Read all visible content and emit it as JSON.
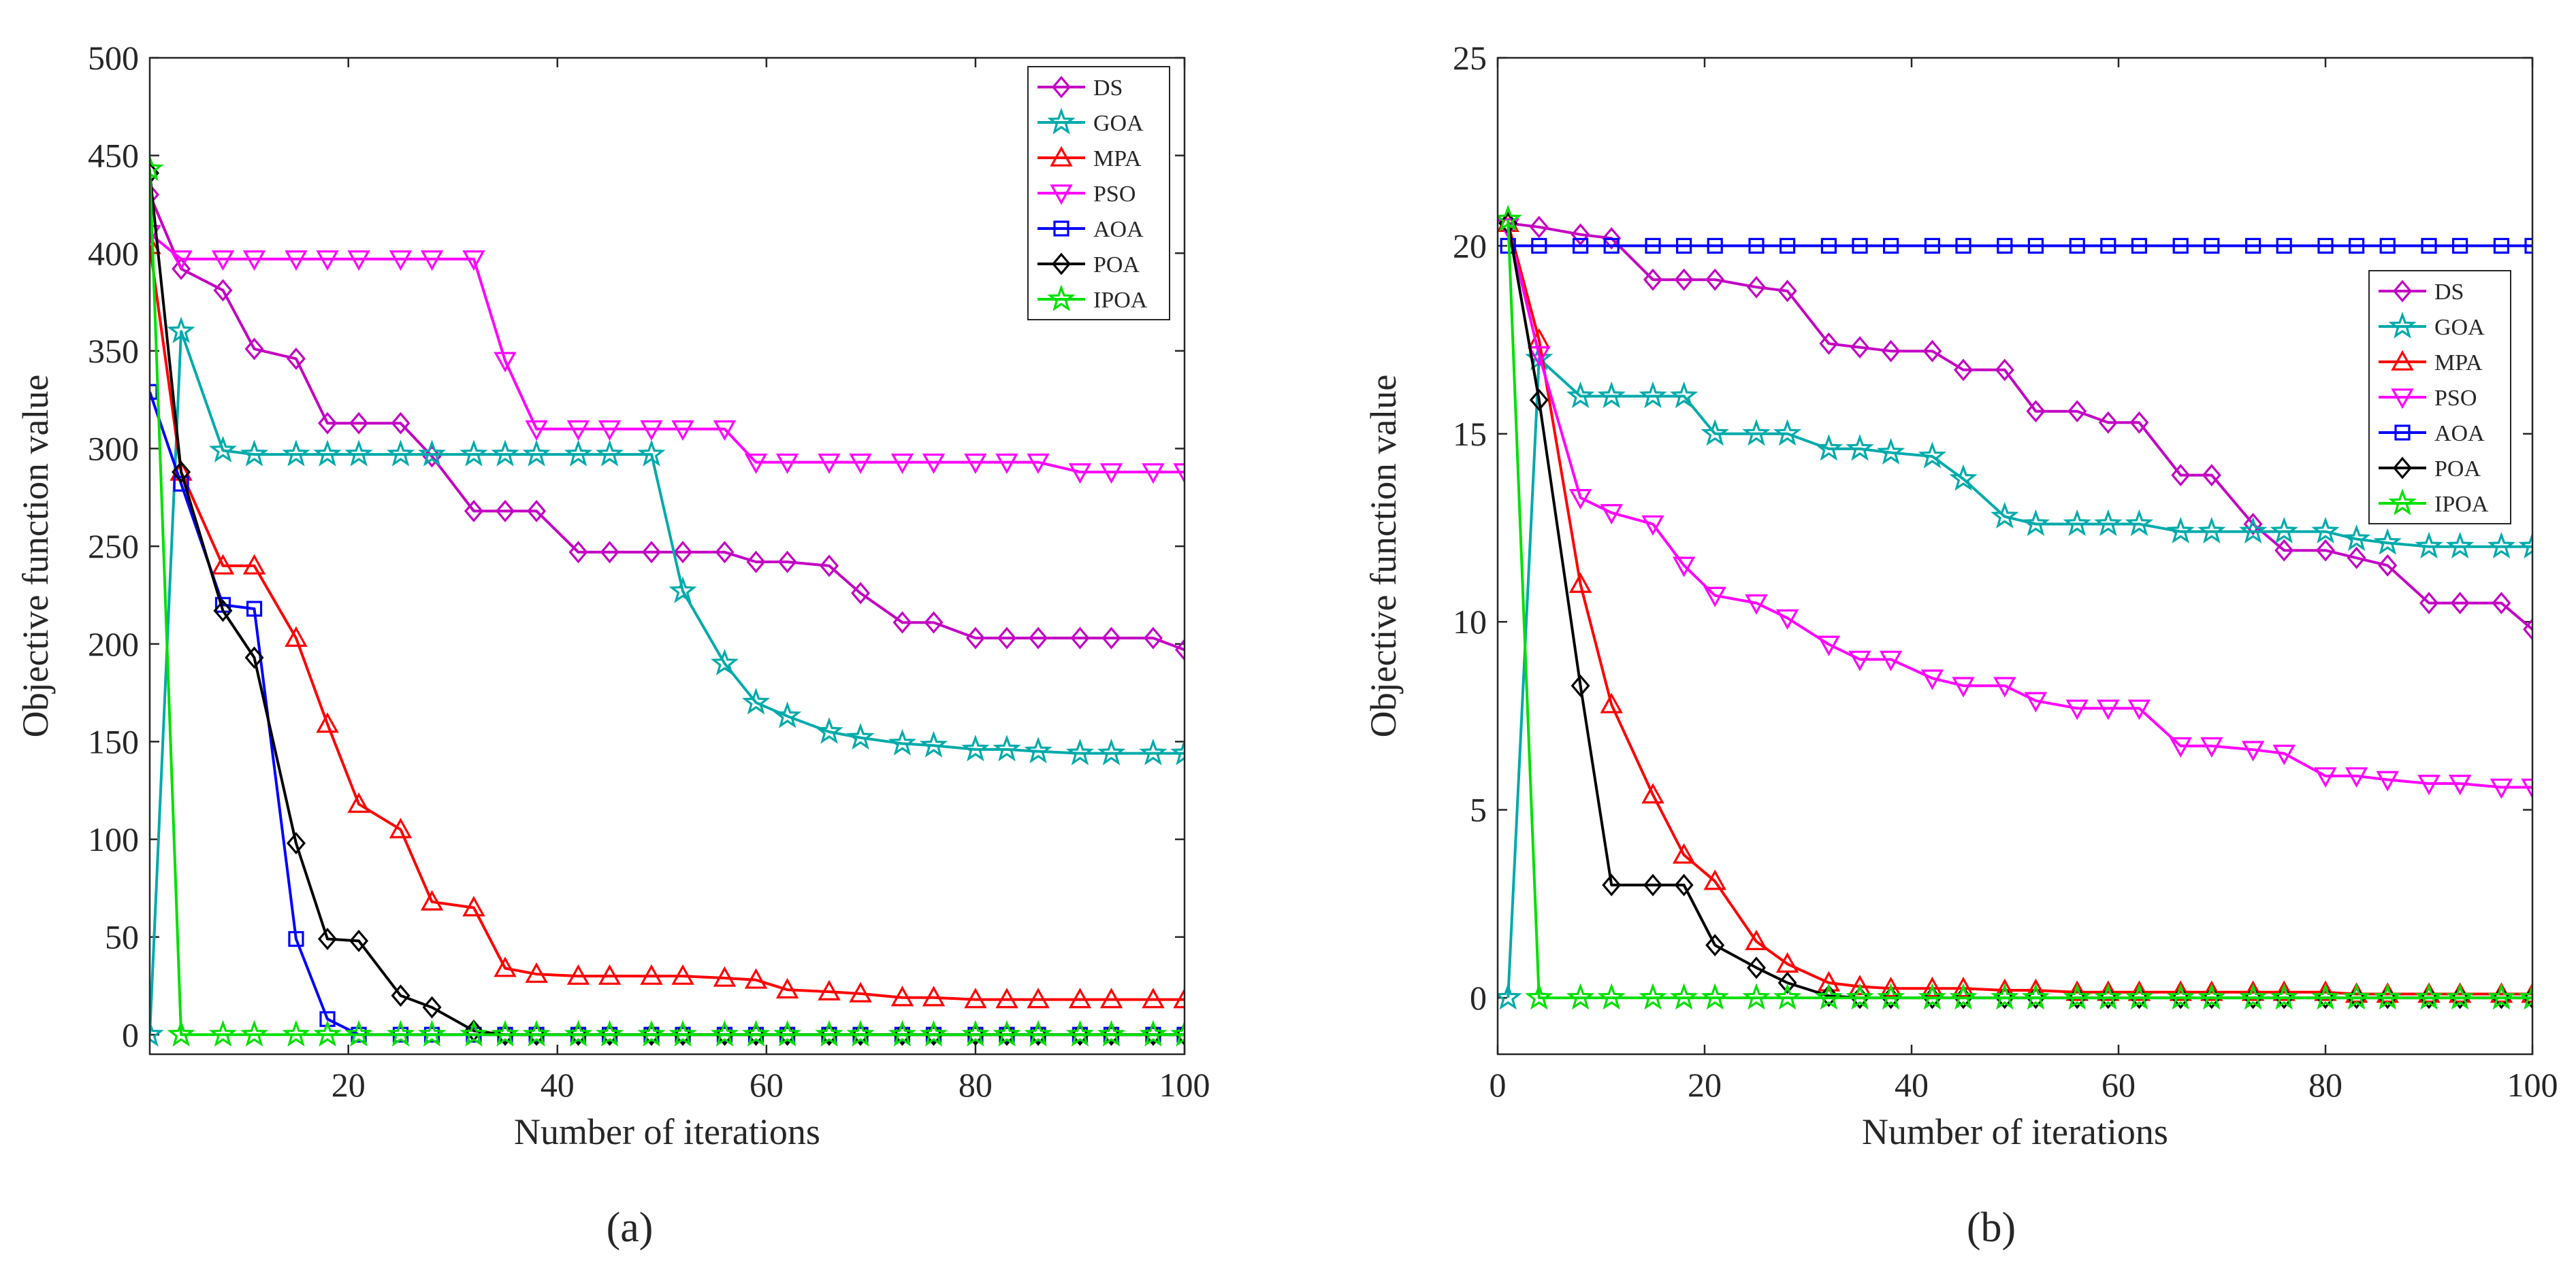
{
  "chart_data": [
    {
      "type": "line",
      "panel_label": "(a)",
      "title": "",
      "xlabel": "Number of iterations",
      "ylabel": "Objective function value",
      "xlim": [
        1,
        100
      ],
      "ylim": [
        -10,
        500
      ],
      "xticks": [
        20,
        40,
        60,
        80,
        100
      ],
      "yticks": [
        0,
        50,
        100,
        150,
        200,
        250,
        300,
        350,
        400,
        450,
        500
      ],
      "grid": false,
      "legend_position": "top-right",
      "series": [
        {
          "name": "DS",
          "color": "#c300c3",
          "marker": "diamond",
          "x": [
            1,
            4,
            8,
            11,
            15,
            18,
            21,
            25,
            28,
            32,
            35,
            38,
            42,
            45,
            49,
            52,
            56,
            59,
            62,
            66,
            69,
            73,
            76,
            80,
            83,
            86,
            90,
            93,
            97,
            100
          ],
          "y": [
            430,
            392,
            381,
            351,
            346,
            313,
            313,
            313,
            296,
            268,
            268,
            268,
            247,
            247,
            247,
            247,
            247,
            242,
            242,
            240,
            226,
            211,
            211,
            203,
            203,
            203,
            203,
            203,
            203,
            197
          ]
        },
        {
          "name": "GOA",
          "color": "#00aaaa",
          "marker": "star",
          "x": [
            1,
            4,
            8,
            11,
            15,
            18,
            21,
            25,
            28,
            32,
            35,
            38,
            42,
            45,
            49,
            52,
            56,
            59,
            62,
            66,
            69,
            73,
            76,
            80,
            83,
            86,
            90,
            93,
            97,
            100
          ],
          "y": [
            0,
            360,
            299,
            297,
            297,
            297,
            297,
            297,
            297,
            297,
            297,
            297,
            297,
            297,
            297,
            227,
            190,
            170,
            163,
            155,
            152,
            149,
            148,
            146,
            146,
            145,
            144,
            144,
            144,
            144
          ]
        },
        {
          "name": "MPA",
          "color": "#ff0000",
          "marker": "triangle-up",
          "x": [
            1,
            4,
            8,
            11,
            15,
            18,
            21,
            25,
            28,
            32,
            35,
            38,
            42,
            45,
            49,
            52,
            56,
            59,
            62,
            66,
            69,
            73,
            76,
            80,
            83,
            86,
            90,
            93,
            97,
            100
          ],
          "y": [
            404,
            288,
            240,
            240,
            203,
            159,
            118,
            105,
            68,
            65,
            34,
            31,
            30,
            30,
            30,
            30,
            29,
            28,
            23,
            22,
            21,
            19,
            19,
            18,
            18,
            18,
            18,
            18,
            18,
            18
          ]
        },
        {
          "name": "PSO",
          "color": "#ff00ff",
          "marker": "triangle-down",
          "x": [
            1,
            4,
            8,
            11,
            15,
            18,
            21,
            25,
            28,
            32,
            35,
            38,
            42,
            45,
            49,
            52,
            56,
            59,
            62,
            66,
            69,
            73,
            76,
            80,
            83,
            86,
            90,
            93,
            97,
            100
          ],
          "y": [
            410,
            397,
            397,
            397,
            397,
            397,
            397,
            397,
            397,
            397,
            345,
            310,
            310,
            310,
            310,
            310,
            310,
            293,
            293,
            293,
            293,
            293,
            293,
            293,
            293,
            293,
            288,
            288,
            288,
            288
          ]
        },
        {
          "name": "AOA",
          "color": "#0000ff",
          "marker": "square",
          "x": [
            1,
            4,
            8,
            11,
            15,
            18,
            21,
            25,
            28,
            32,
            35,
            38,
            42,
            45,
            49,
            52,
            56,
            59,
            62,
            66,
            69,
            73,
            76,
            80,
            83,
            86,
            90,
            93,
            97,
            100
          ],
          "y": [
            329,
            282,
            220,
            218,
            49,
            8,
            0,
            0,
            0,
            0,
            0,
            0,
            0,
            0,
            0,
            0,
            0,
            0,
            0,
            0,
            0,
            0,
            0,
            0,
            0,
            0,
            0,
            0,
            0,
            0
          ]
        },
        {
          "name": "POA",
          "color": "#000000",
          "marker": "diamond",
          "x": [
            1,
            4,
            8,
            11,
            15,
            18,
            21,
            25,
            28,
            32,
            35,
            38,
            42,
            45,
            49,
            52,
            56,
            59,
            62,
            66,
            69,
            73,
            76,
            80,
            83,
            86,
            90,
            93,
            97,
            100
          ],
          "y": [
            441,
            288,
            217,
            193,
            98,
            49,
            48,
            20,
            14,
            2,
            0,
            0,
            0,
            0,
            0,
            0,
            0,
            0,
            0,
            0,
            0,
            0,
            0,
            0,
            0,
            0,
            0,
            0,
            0,
            0
          ]
        },
        {
          "name": "IPOA",
          "color": "#00e000",
          "marker": "star",
          "x": [
            1,
            4,
            8,
            11,
            15,
            18,
            21,
            25,
            28,
            32,
            35,
            38,
            42,
            45,
            49,
            52,
            56,
            59,
            62,
            66,
            69,
            73,
            76,
            80,
            83,
            86,
            90,
            93,
            97,
            100
          ],
          "y": [
            443,
            0,
            0,
            0,
            0,
            0,
            0,
            0,
            0,
            0,
            0,
            0,
            0,
            0,
            0,
            0,
            0,
            0,
            0,
            0,
            0,
            0,
            0,
            0,
            0,
            0,
            0,
            0,
            0,
            0
          ]
        }
      ]
    },
    {
      "type": "line",
      "panel_label": "(b)",
      "title": "",
      "xlabel": "Number of iterations",
      "ylabel": "Objective function value",
      "xlim": [
        0,
        100
      ],
      "ylim": [
        -1.5,
        25
      ],
      "xticks": [
        0,
        20,
        40,
        60,
        80,
        100
      ],
      "yticks": [
        0,
        5,
        10,
        15,
        20,
        25
      ],
      "grid": false,
      "legend_position": "upper-right",
      "series": [
        {
          "name": "DS",
          "color": "#c300c3",
          "marker": "diamond",
          "x": [
            1,
            4,
            8,
            11,
            15,
            18,
            21,
            25,
            28,
            32,
            35,
            38,
            42,
            45,
            49,
            52,
            56,
            59,
            62,
            66,
            69,
            73,
            76,
            80,
            83,
            86,
            90,
            93,
            97,
            100
          ],
          "y": [
            20.6,
            20.5,
            20.3,
            20.2,
            19.1,
            19.1,
            19.1,
            18.9,
            18.8,
            17.4,
            17.3,
            17.2,
            17.2,
            16.7,
            16.7,
            15.6,
            15.6,
            15.3,
            15.3,
            13.9,
            13.9,
            12.6,
            11.9,
            11.9,
            11.7,
            11.5,
            10.5,
            10.5,
            10.5,
            9.8
          ]
        },
        {
          "name": "GOA",
          "color": "#00aaaa",
          "marker": "star",
          "x": [
            1,
            4,
            8,
            11,
            15,
            18,
            21,
            25,
            28,
            32,
            35,
            38,
            42,
            45,
            49,
            52,
            56,
            59,
            62,
            66,
            69,
            73,
            76,
            80,
            83,
            86,
            90,
            93,
            97,
            100
          ],
          "y": [
            0,
            17,
            16,
            16,
            16,
            16,
            15,
            15,
            15,
            14.6,
            14.6,
            14.5,
            14.4,
            13.8,
            12.8,
            12.6,
            12.6,
            12.6,
            12.6,
            12.4,
            12.4,
            12.4,
            12.4,
            12.4,
            12.2,
            12.1,
            12,
            12,
            12,
            12
          ]
        },
        {
          "name": "MPA",
          "color": "#ff0000",
          "marker": "triangle-up",
          "x": [
            1,
            4,
            8,
            11,
            15,
            18,
            21,
            25,
            28,
            32,
            35,
            38,
            42,
            45,
            49,
            52,
            56,
            59,
            62,
            66,
            69,
            73,
            76,
            80,
            83,
            86,
            90,
            93,
            97,
            100
          ],
          "y": [
            20.6,
            17.5,
            11,
            7.8,
            5.4,
            3.8,
            3.1,
            1.5,
            0.9,
            0.4,
            0.3,
            0.25,
            0.25,
            0.25,
            0.2,
            0.2,
            0.15,
            0.15,
            0.15,
            0.15,
            0.15,
            0.15,
            0.15,
            0.15,
            0.1,
            0.1,
            0.1,
            0.1,
            0.1,
            0.1
          ]
        },
        {
          "name": "PSO",
          "color": "#ff00ff",
          "marker": "triangle-down",
          "x": [
            1,
            4,
            8,
            11,
            15,
            18,
            21,
            25,
            28,
            32,
            35,
            38,
            42,
            45,
            49,
            52,
            56,
            59,
            62,
            66,
            69,
            73,
            76,
            80,
            83,
            86,
            90,
            93,
            97,
            100
          ],
          "y": [
            20.5,
            17.1,
            13.3,
            12.9,
            12.6,
            11.5,
            10.7,
            10.5,
            10.1,
            9.4,
            9,
            9,
            8.5,
            8.3,
            8.3,
            7.9,
            7.7,
            7.7,
            7.7,
            6.7,
            6.7,
            6.6,
            6.5,
            5.9,
            5.9,
            5.8,
            5.7,
            5.7,
            5.6,
            5.6
          ]
        },
        {
          "name": "AOA",
          "color": "#0000ff",
          "marker": "square",
          "x": [
            1,
            4,
            8,
            11,
            15,
            18,
            21,
            25,
            28,
            32,
            35,
            38,
            42,
            45,
            49,
            52,
            56,
            59,
            62,
            66,
            69,
            73,
            76,
            80,
            83,
            86,
            90,
            93,
            97,
            100
          ],
          "y": [
            20,
            20,
            20,
            20,
            20,
            20,
            20,
            20,
            20,
            20,
            20,
            20,
            20,
            20,
            20,
            20,
            20,
            20,
            20,
            20,
            20,
            20,
            20,
            20,
            20,
            20,
            20,
            20,
            20,
            20
          ]
        },
        {
          "name": "POA",
          "color": "#000000",
          "marker": "diamond",
          "x": [
            1,
            4,
            8,
            11,
            15,
            18,
            21,
            25,
            28,
            32,
            35,
            38,
            42,
            45,
            49,
            52,
            56,
            59,
            62,
            66,
            69,
            73,
            76,
            80,
            83,
            86,
            90,
            93,
            97,
            100
          ],
          "y": [
            20.6,
            15.9,
            8.3,
            3,
            3,
            3,
            1.4,
            0.8,
            0.4,
            0.05,
            0,
            0,
            0,
            0,
            0,
            0,
            0,
            0,
            0,
            0,
            0,
            0,
            0,
            0,
            0,
            0,
            0,
            0,
            0,
            0
          ]
        },
        {
          "name": "IPOA",
          "color": "#00e000",
          "marker": "star",
          "x": [
            1,
            4,
            8,
            11,
            15,
            18,
            21,
            25,
            28,
            32,
            35,
            38,
            42,
            45,
            49,
            52,
            56,
            59,
            62,
            66,
            69,
            73,
            76,
            80,
            83,
            86,
            90,
            93,
            97,
            100
          ],
          "y": [
            20.7,
            0,
            0,
            0,
            0,
            0,
            0,
            0,
            0,
            0,
            0,
            0,
            0,
            0,
            0,
            0,
            0,
            0,
            0,
            0,
            0,
            0,
            0,
            0,
            0,
            0,
            0,
            0,
            0,
            0
          ]
        }
      ]
    }
  ]
}
